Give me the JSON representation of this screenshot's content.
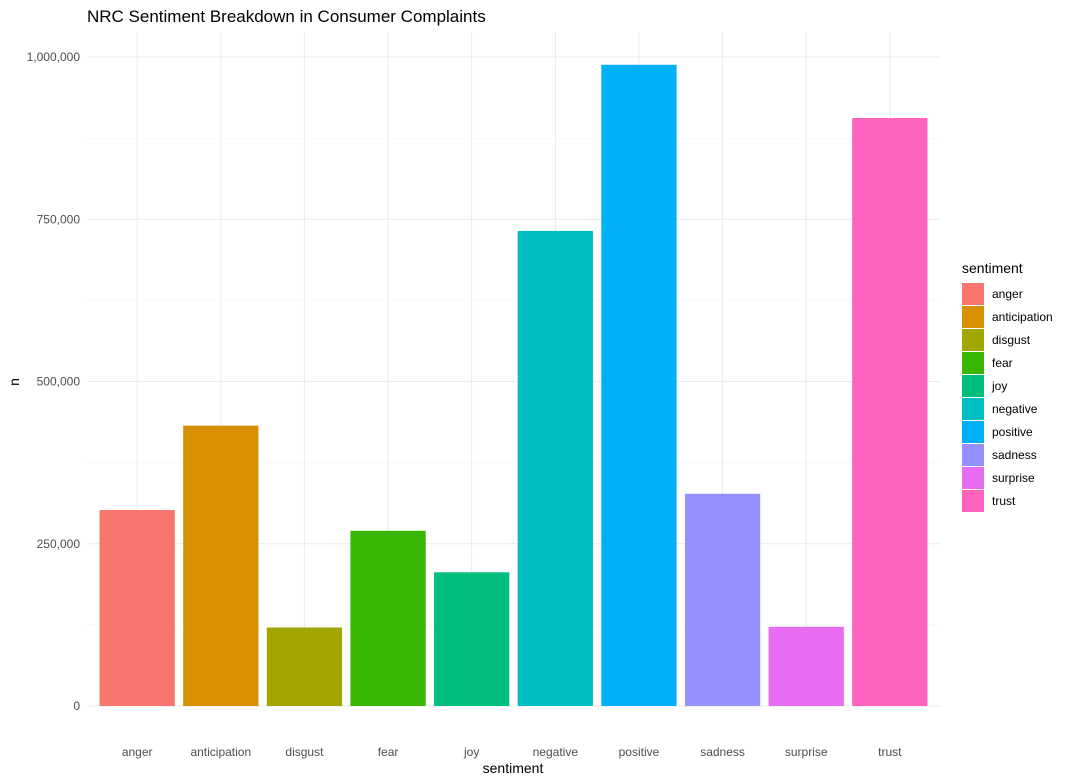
{
  "chart_data": {
    "type": "bar",
    "title": "NRC Sentiment Breakdown in Consumer Complaints",
    "xlabel": "sentiment",
    "ylabel": "n",
    "categories": [
      "anger",
      "anticipation",
      "disgust",
      "fear",
      "joy",
      "negative",
      "positive",
      "sadness",
      "surprise",
      "trust"
    ],
    "values": [
      302000,
      432000,
      121000,
      270000,
      206000,
      732000,
      988000,
      327000,
      122000,
      906000
    ],
    "colors": [
      "#F8766D",
      "#D89000",
      "#A3A500",
      "#39B600",
      "#00BF7D",
      "#00BFC4",
      "#00B0F6",
      "#9590FF",
      "#E76BF3",
      "#FF62BC"
    ],
    "ylim": [
      0,
      1000000
    ],
    "yticks": [
      0,
      250000,
      500000,
      750000,
      1000000
    ],
    "ytick_labels": [
      "0",
      "250,000",
      "500,000",
      "750,000",
      "1,000,000"
    ],
    "grid": true,
    "legend": {
      "title": "sentiment",
      "placement": "right",
      "entries": [
        "anger",
        "anticipation",
        "disgust",
        "fear",
        "joy",
        "negative",
        "positive",
        "sadness",
        "surprise",
        "trust"
      ]
    }
  }
}
